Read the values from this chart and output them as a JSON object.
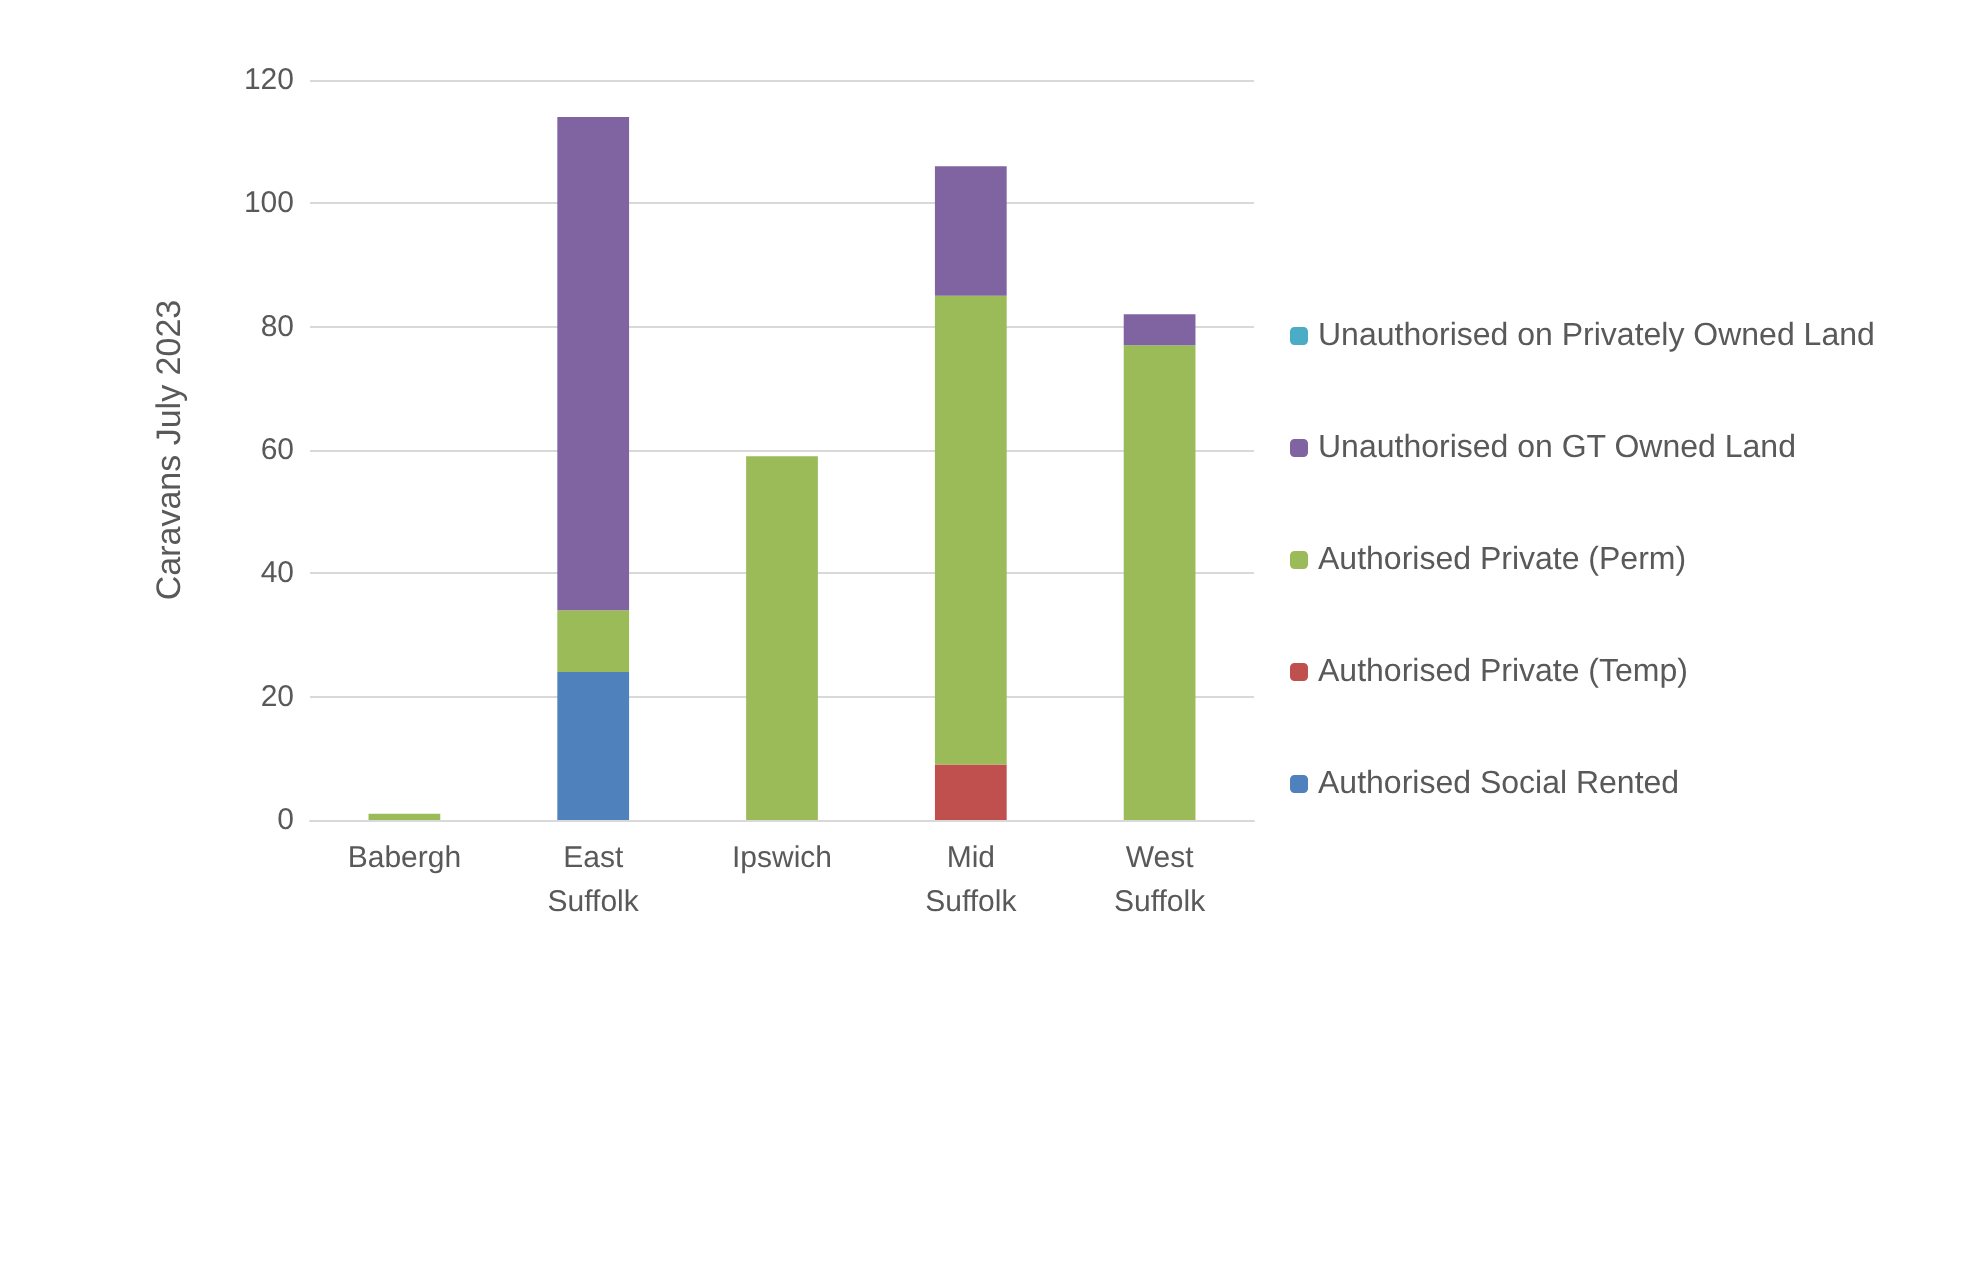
{
  "chart_data": {
    "type": "bar",
    "stacked": true,
    "ylabel": "Caravans July 2023",
    "categories": [
      "Babergh",
      "East Suffolk",
      "Ipswich",
      "Mid Suffolk",
      "West Suffolk"
    ],
    "series": [
      {
        "name": "Authorised Social Rented",
        "color": "#4f81bd",
        "values": [
          0,
          24,
          0,
          0,
          0
        ]
      },
      {
        "name": "Authorised Private (Temp)",
        "color": "#c0504d",
        "values": [
          0,
          0,
          0,
          9,
          0
        ]
      },
      {
        "name": "Authorised Private (Perm)",
        "color": "#9bbb59",
        "values": [
          1,
          10,
          59,
          76,
          77
        ]
      },
      {
        "name": "Unauthorised on GT Owned Land",
        "color": "#8064a2",
        "values": [
          0,
          80,
          0,
          21,
          5
        ]
      },
      {
        "name": "Unauthorised on Privately Owned Land",
        "color": "#4bacc6",
        "values": [
          0,
          0,
          0,
          0,
          0
        ]
      }
    ],
    "ylim": [
      0,
      120
    ],
    "yticks": [
      0,
      20,
      40,
      60,
      80,
      100,
      120
    ],
    "grid": "y",
    "legend": "right"
  }
}
